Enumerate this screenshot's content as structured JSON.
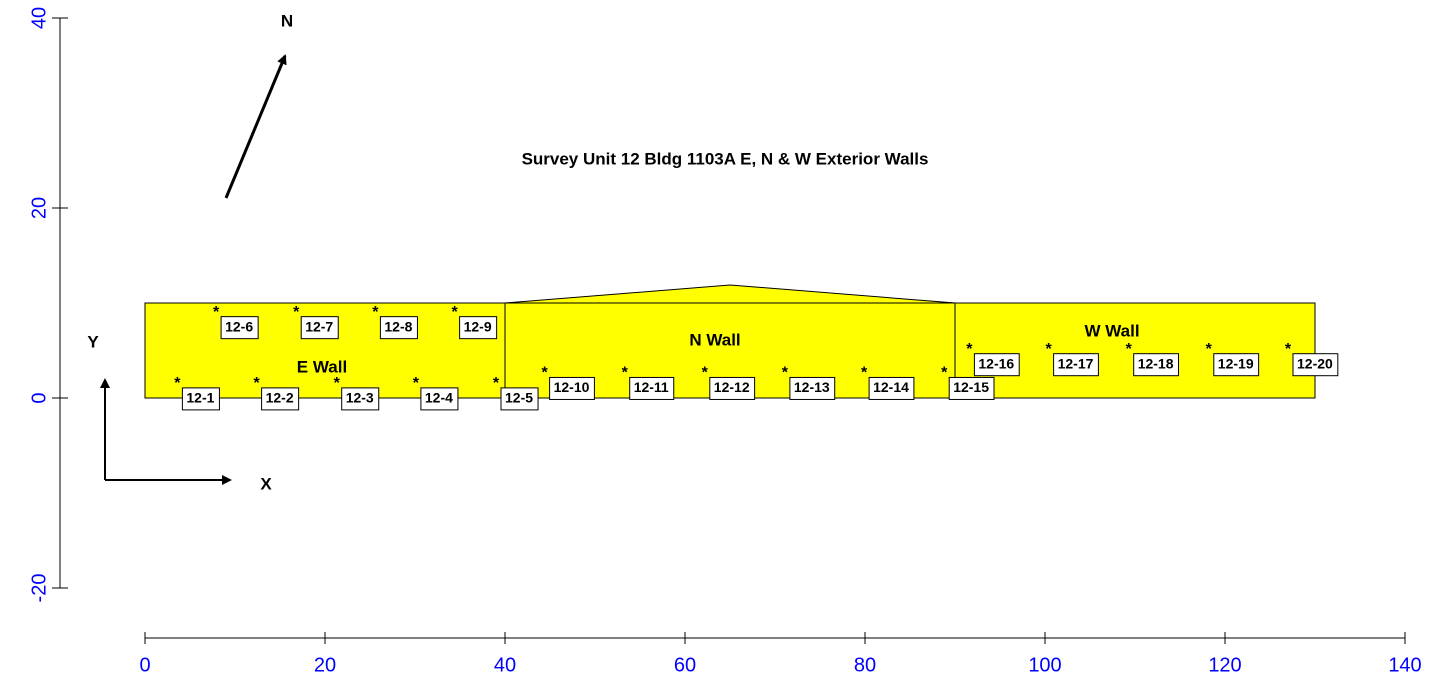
{
  "chart_data": {
    "type": "scatter",
    "title": "Survey Unit 12 Bldg 1103A E, N & W  Exterior Walls",
    "compass_label": "N",
    "x_axis_label": "X",
    "y_axis_label": "Y",
    "xlim": [
      0,
      140
    ],
    "ylim": [
      -20,
      40
    ],
    "xticks": [
      0,
      20,
      40,
      60,
      80,
      100,
      120,
      140
    ],
    "yticks": [
      -20,
      0,
      20,
      40
    ],
    "color": "#ffff00",
    "walls": [
      {
        "name": "E Wall",
        "x": [
          0,
          40,
          40,
          0
        ],
        "y": [
          0,
          0,
          10,
          10
        ]
      },
      {
        "name": "N Wall",
        "x": [
          40,
          90,
          90,
          65,
          40
        ],
        "y": [
          0,
          0,
          10,
          11.9,
          10
        ]
      },
      {
        "name": "W Wall",
        "x": [
          90,
          130,
          130,
          90
        ],
        "y": [
          0,
          0,
          10,
          10
        ]
      }
    ],
    "points": [
      {
        "label": "12-1",
        "x": 3.6,
        "y": 1.8
      },
      {
        "label": "12-2",
        "x": 12.4,
        "y": 1.8
      },
      {
        "label": "12-3",
        "x": 21.3,
        "y": 1.8
      },
      {
        "label": "12-4",
        "x": 30.1,
        "y": 1.8
      },
      {
        "label": "12-5",
        "x": 39,
        "y": 1.8
      },
      {
        "label": "12-6",
        "x": 7.9,
        "y": 9.3
      },
      {
        "label": "12-7",
        "x": 16.8,
        "y": 9.3
      },
      {
        "label": "12-8",
        "x": 25.6,
        "y": 9.3
      },
      {
        "label": "12-9",
        "x": 34.4,
        "y": 9.3
      },
      {
        "label": "12-10",
        "x": 44.4,
        "y": 2.9
      },
      {
        "label": "12-11",
        "x": 53.3,
        "y": 2.9
      },
      {
        "label": "12-12",
        "x": 62.2,
        "y": 2.9
      },
      {
        "label": "12-13",
        "x": 71.1,
        "y": 2.9
      },
      {
        "label": "12-14",
        "x": 79.9,
        "y": 2.9
      },
      {
        "label": "12-15",
        "x": 88.8,
        "y": 2.9
      },
      {
        "label": "12-16",
        "x": 91.6,
        "y": 5.4
      },
      {
        "label": "12-17",
        "x": 100.4,
        "y": 5.4
      },
      {
        "label": "12-18",
        "x": 109.3,
        "y": 5.4
      },
      {
        "label": "12-19",
        "x": 118.2,
        "y": 5.4
      },
      {
        "label": "12-20",
        "x": 127,
        "y": 5.4
      }
    ]
  }
}
